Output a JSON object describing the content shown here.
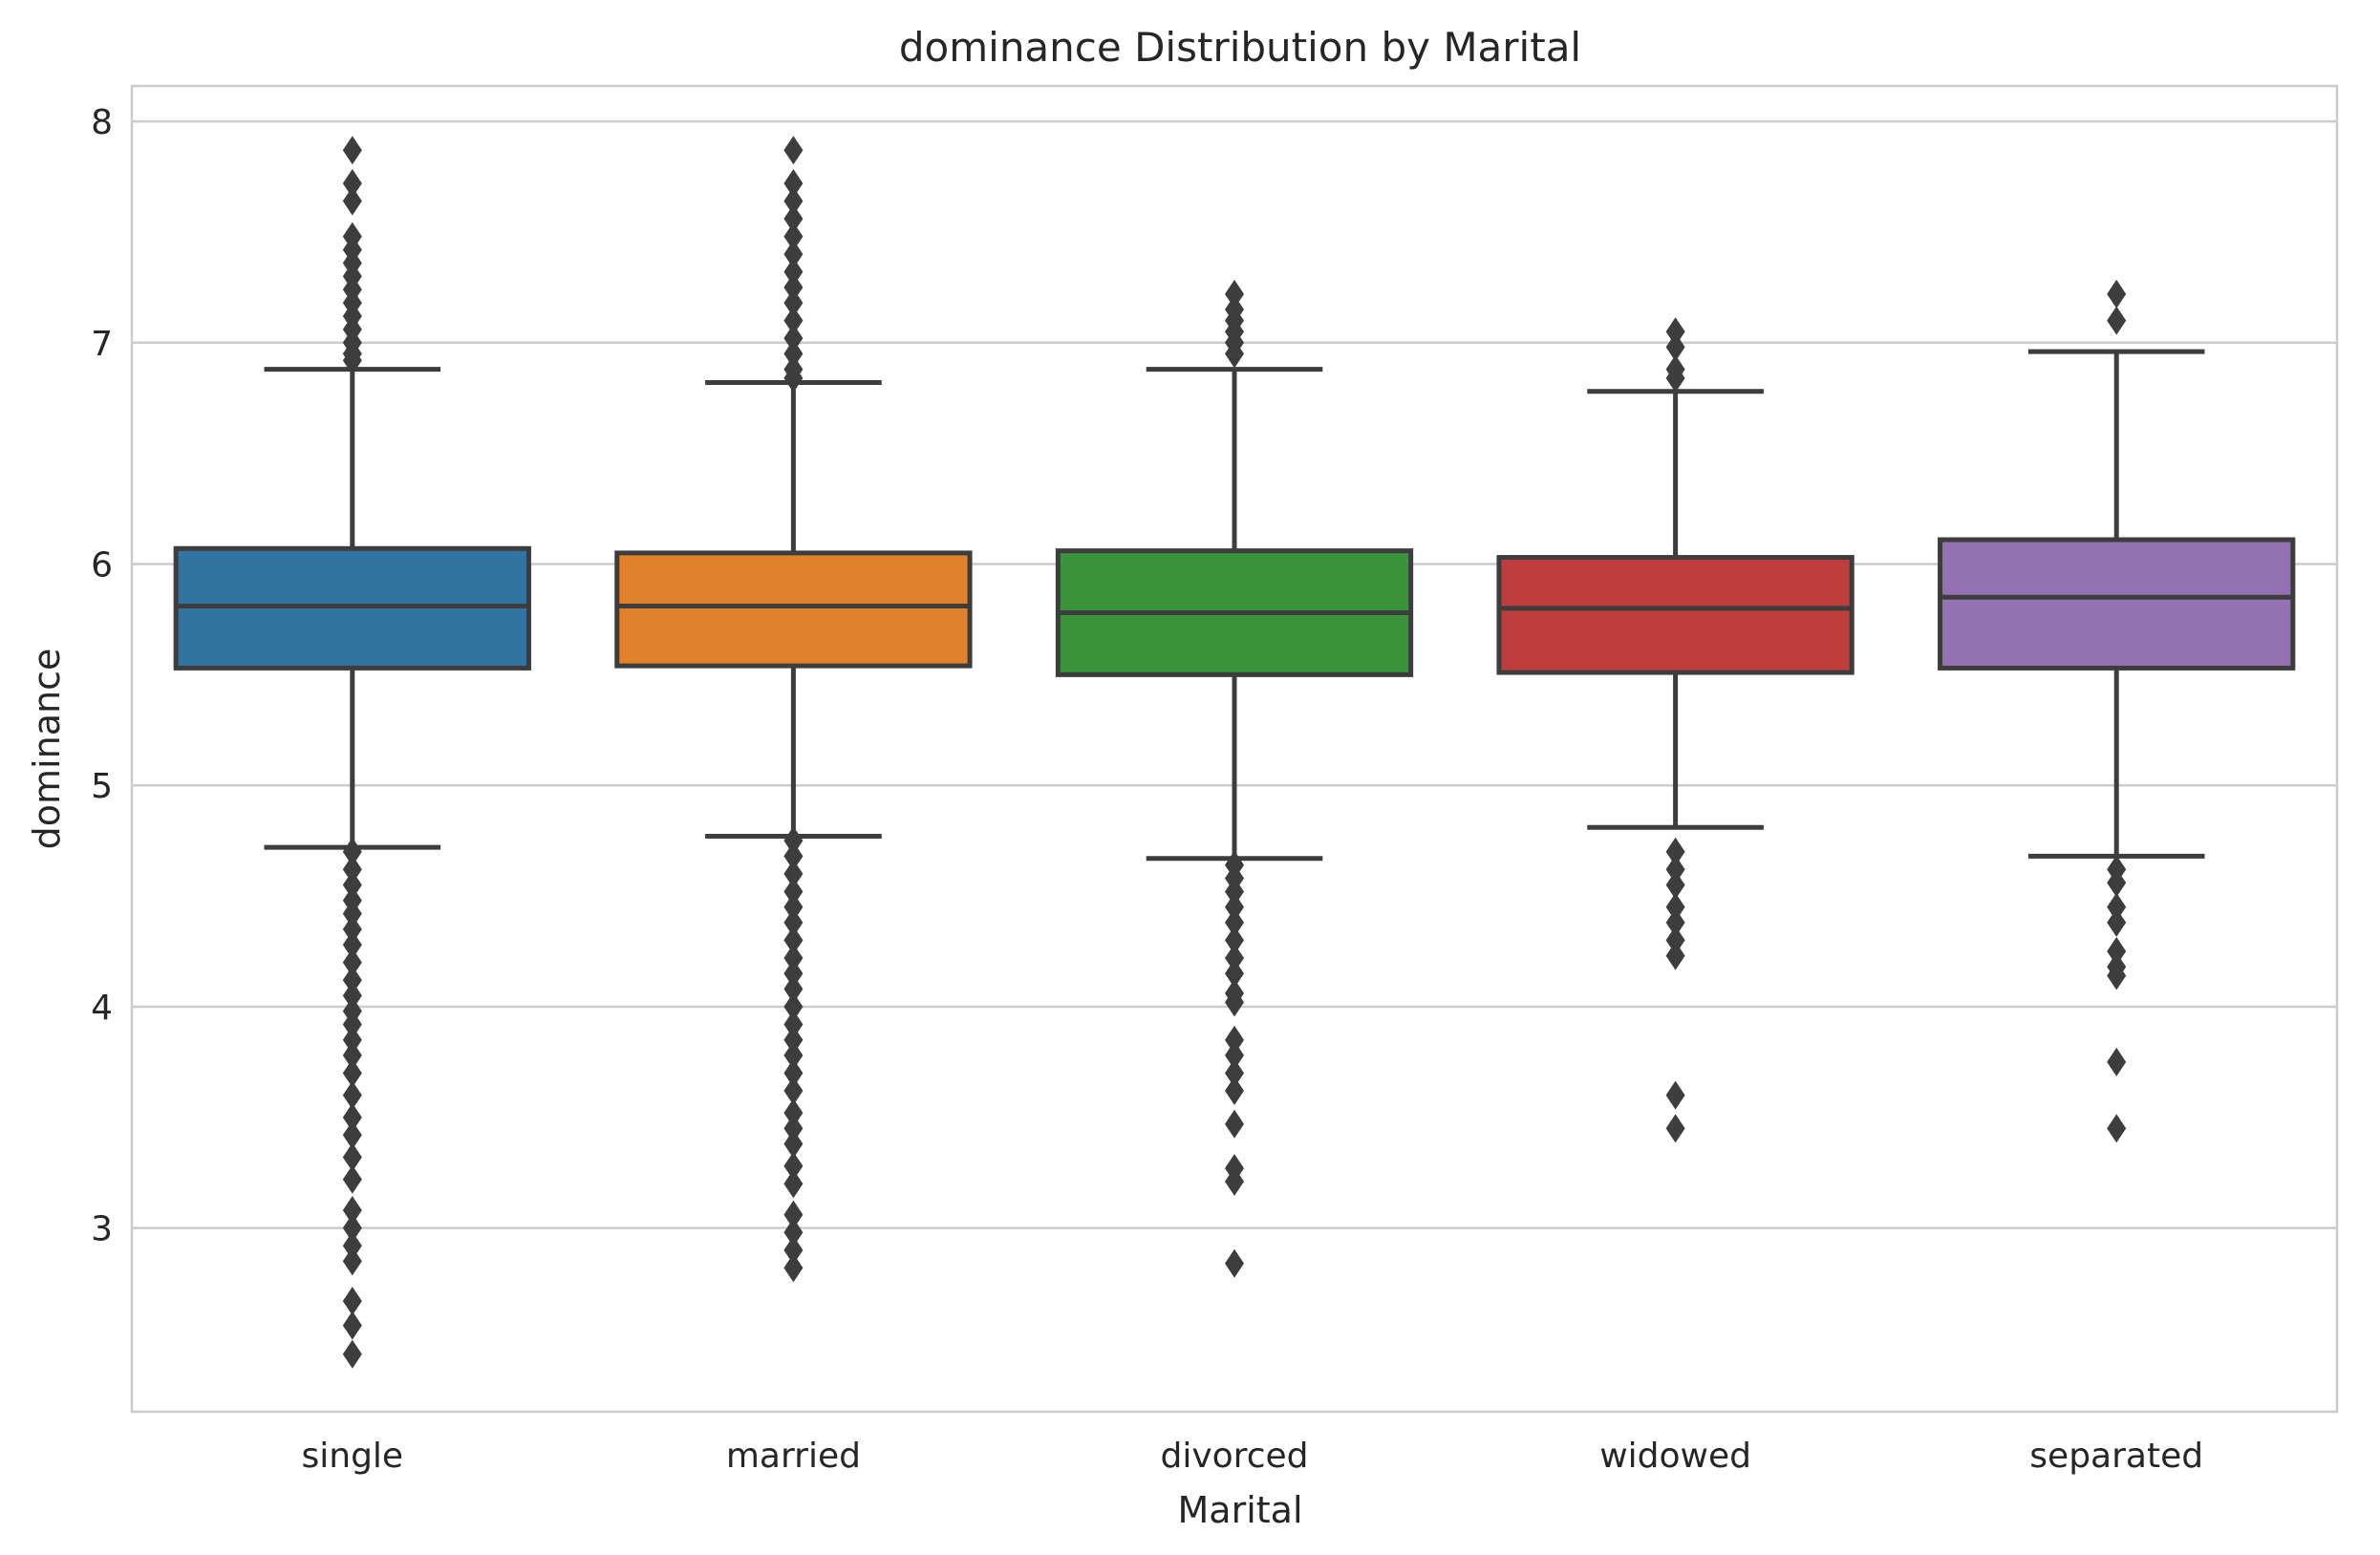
{
  "chart_data": {
    "type": "box",
    "title": "dominance Distribution by Marital",
    "xlabel": "Marital",
    "ylabel": "dominance",
    "ylim": [
      2.17,
      8.16
    ],
    "yticks": [
      3,
      4,
      5,
      6,
      7,
      8
    ],
    "grid": true,
    "categories": [
      "single",
      "married",
      "divorced",
      "widowed",
      "separated"
    ],
    "colors": [
      "#3274a1",
      "#e1812c",
      "#3a923a",
      "#c03d3e",
      "#9372b2"
    ],
    "series": [
      {
        "whisker_low": 4.72,
        "q1": 5.53,
        "median": 5.81,
        "q3": 6.07,
        "whisker_high": 6.88,
        "fliers": [
          7.87,
          7.72,
          7.64,
          7.48,
          7.42,
          7.36,
          7.3,
          7.24,
          7.18,
          7.12,
          7.06,
          7.0,
          6.95,
          6.92,
          4.7,
          4.62,
          4.55,
          4.48,
          4.42,
          4.35,
          4.28,
          4.2,
          4.12,
          4.05,
          3.98,
          3.92,
          3.85,
          3.78,
          3.7,
          3.6,
          3.5,
          3.42,
          3.32,
          3.22,
          3.08,
          3.0,
          2.92,
          2.85,
          2.67,
          2.56,
          2.43
        ]
      },
      {
        "whisker_low": 4.77,
        "q1": 5.54,
        "median": 5.81,
        "q3": 6.05,
        "whisker_high": 6.82,
        "fliers": [
          7.87,
          7.72,
          7.64,
          7.56,
          7.48,
          7.4,
          7.32,
          7.25,
          7.18,
          7.1,
          7.02,
          6.95,
          6.88,
          6.84,
          4.75,
          4.68,
          4.6,
          4.52,
          4.45,
          4.38,
          4.3,
          4.22,
          4.15,
          4.08,
          4.0,
          3.92,
          3.85,
          3.78,
          3.7,
          3.62,
          3.52,
          3.45,
          3.38,
          3.28,
          3.2,
          3.06,
          2.98,
          2.9,
          2.82
        ]
      },
      {
        "whisker_low": 4.67,
        "q1": 5.5,
        "median": 5.78,
        "q3": 6.06,
        "whisker_high": 6.88,
        "fliers": [
          7.22,
          7.15,
          7.1,
          7.05,
          7.0,
          6.95,
          4.64,
          4.58,
          4.52,
          4.45,
          4.38,
          4.3,
          4.22,
          4.15,
          4.06,
          4.02,
          3.85,
          3.78,
          3.7,
          3.62,
          3.47,
          3.27,
          3.21,
          2.84
        ]
      },
      {
        "whisker_low": 4.81,
        "q1": 5.51,
        "median": 5.8,
        "q3": 6.03,
        "whisker_high": 6.78,
        "fliers": [
          7.05,
          6.98,
          6.88,
          6.84,
          4.7,
          4.62,
          4.55,
          4.45,
          4.38,
          4.3,
          4.23,
          3.6,
          3.45
        ]
      },
      {
        "whisker_low": 4.68,
        "q1": 5.53,
        "median": 5.85,
        "q3": 6.11,
        "whisker_high": 6.96,
        "fliers": [
          7.22,
          7.1,
          4.62,
          4.56,
          4.45,
          4.38,
          4.25,
          4.18,
          4.14,
          3.75,
          3.45
        ]
      }
    ]
  }
}
